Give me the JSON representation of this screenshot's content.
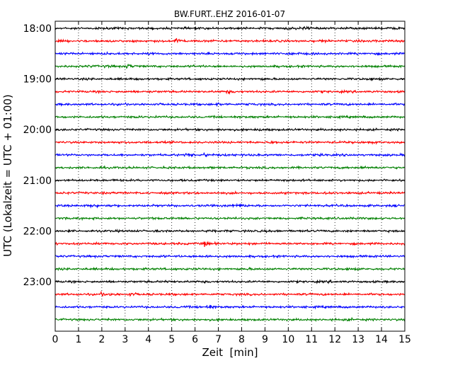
{
  "chart_data": {
    "type": "line",
    "title": "BW.FURT..EHZ 2016-01-07",
    "xlabel": "Zeit  [min]",
    "ylabel": "UTC (Lokalzeit = UTC + 01:00)",
    "xlim": [
      0,
      15
    ],
    "x_ticks": [
      0,
      1,
      2,
      3,
      4,
      5,
      6,
      7,
      8,
      9,
      10,
      11,
      12,
      13,
      14,
      15
    ],
    "y_tick_labels": [
      "18:00",
      "19:00",
      "20:00",
      "21:00",
      "22:00",
      "23:00"
    ],
    "grid": "vertical dotted",
    "trace_interval_minutes": 15,
    "trace_color_cycle": [
      "#000000",
      "#ff0000",
      "#0000ff",
      "#008000"
    ],
    "series": [
      {
        "start": "18:00",
        "events": [
          {
            "x": 10.0,
            "amp": 1.8
          },
          {
            "x": 10.7,
            "amp": 2.6
          },
          {
            "x": 14.5,
            "amp": 1.6
          }
        ]
      },
      {
        "start": "18:15",
        "events": [
          {
            "x": 5.2,
            "amp": 3.2
          },
          {
            "x": 6.8,
            "amp": 1.3
          },
          {
            "x": 11.5,
            "amp": 1.3
          }
        ]
      },
      {
        "start": "18:30",
        "events": [
          {
            "x": 2.0,
            "amp": 1.6
          },
          {
            "x": 4.2,
            "amp": 1.3
          },
          {
            "x": 10.1,
            "amp": 2.4
          },
          {
            "x": 13.4,
            "amp": 1.4
          }
        ]
      },
      {
        "start": "18:45",
        "events": [
          {
            "x": 1.5,
            "amp": 1.5
          },
          {
            "x": 2.2,
            "amp": 1.6
          },
          {
            "x": 3.1,
            "amp": 2.6
          },
          {
            "x": 5.9,
            "amp": 1.3
          },
          {
            "x": 9.5,
            "amp": 1.2
          }
        ]
      },
      {
        "start": "19:00",
        "events": [
          {
            "x": 3.5,
            "amp": 1.2
          },
          {
            "x": 8.8,
            "amp": 1.5
          },
          {
            "x": 13.5,
            "amp": 1.6
          }
        ]
      },
      {
        "start": "19:15",
        "events": [
          {
            "x": 7.4,
            "amp": 2.2
          },
          {
            "x": 11.4,
            "amp": 1.3
          }
        ]
      },
      {
        "start": "19:30",
        "events": [
          {
            "x": 2.8,
            "amp": 1.3
          },
          {
            "x": 7.0,
            "amp": 1.8
          },
          {
            "x": 8.3,
            "amp": 1.3
          },
          {
            "x": 12.2,
            "amp": 1.2
          }
        ]
      },
      {
        "start": "19:45",
        "events": [
          {
            "x": 3.5,
            "amp": 1.4
          },
          {
            "x": 4.3,
            "amp": 1.3
          },
          {
            "x": 8.5,
            "amp": 1.2
          }
        ]
      },
      {
        "start": "20:00",
        "events": [
          {
            "x": 7.0,
            "amp": 1.3
          },
          {
            "x": 8.8,
            "amp": 1.7
          },
          {
            "x": 12.3,
            "amp": 1.3
          }
        ]
      },
      {
        "start": "20:15",
        "events": [
          {
            "x": 3.2,
            "amp": 1.4
          },
          {
            "x": 9.3,
            "amp": 2.0
          },
          {
            "x": 13.5,
            "amp": 1.3
          }
        ]
      },
      {
        "start": "20:30",
        "events": [
          {
            "x": 5.6,
            "amp": 2.0
          },
          {
            "x": 6.4,
            "amp": 2.2
          },
          {
            "x": 7.5,
            "amp": 1.2
          },
          {
            "x": 11.1,
            "amp": 1.2
          }
        ]
      },
      {
        "start": "20:45",
        "events": [
          {
            "x": 8.2,
            "amp": 1.2
          },
          {
            "x": 13.2,
            "amp": 1.4
          }
        ]
      },
      {
        "start": "21:00",
        "events": [
          {
            "x": 2.3,
            "amp": 1.2
          },
          {
            "x": 9.8,
            "amp": 1.5
          },
          {
            "x": 14.0,
            "amp": 1.3
          }
        ]
      },
      {
        "start": "21:15",
        "events": [
          {
            "x": 11.6,
            "amp": 2.2
          },
          {
            "x": 12.8,
            "amp": 1.3
          }
        ]
      },
      {
        "start": "21:30",
        "events": [
          {
            "x": 1.5,
            "amp": 2.3
          },
          {
            "x": 2.3,
            "amp": 1.8
          },
          {
            "x": 7.4,
            "amp": 1.6
          },
          {
            "x": 7.9,
            "amp": 2.3
          }
        ]
      },
      {
        "start": "21:45",
        "events": [
          {
            "x": 3.9,
            "amp": 1.2
          },
          {
            "x": 7.3,
            "amp": 1.2
          },
          {
            "x": 12.5,
            "amp": 1.2
          }
        ]
      },
      {
        "start": "22:00",
        "events": [
          {
            "x": 6.5,
            "amp": 1.6
          },
          {
            "x": 9.0,
            "amp": 1.3
          },
          {
            "x": 10.5,
            "amp": 1.2
          }
        ]
      },
      {
        "start": "22:15",
        "events": [
          {
            "x": 6.4,
            "amp": 3.2
          },
          {
            "x": 7.0,
            "amp": 1.4
          },
          {
            "x": 8.4,
            "amp": 1.3
          }
        ]
      },
      {
        "start": "22:30",
        "events": [
          {
            "x": 4.5,
            "amp": 1.4
          },
          {
            "x": 6.4,
            "amp": 2.2
          },
          {
            "x": 6.9,
            "amp": 1.3
          }
        ]
      },
      {
        "start": "22:45",
        "events": [
          {
            "x": 8.3,
            "amp": 1.3
          },
          {
            "x": 12.6,
            "amp": 1.4
          }
        ]
      },
      {
        "start": "23:00",
        "events": [
          {
            "x": 4.8,
            "amp": 1.5
          },
          {
            "x": 6.4,
            "amp": 1.3
          },
          {
            "x": 11.8,
            "amp": 1.3
          }
        ]
      },
      {
        "start": "23:15",
        "events": [
          {
            "x": 2.0,
            "amp": 2.0
          },
          {
            "x": 2.4,
            "amp": 1.6
          },
          {
            "x": 3.2,
            "amp": 2.1
          }
        ]
      },
      {
        "start": "23:30",
        "events": [
          {
            "x": 5.3,
            "amp": 1.3
          },
          {
            "x": 6.2,
            "amp": 2.0
          },
          {
            "x": 6.6,
            "amp": 2.6
          }
        ]
      },
      {
        "start": "23:45",
        "events": [
          {
            "x": 2.3,
            "amp": 1.2
          },
          {
            "x": 12.6,
            "amp": 1.6
          }
        ]
      }
    ]
  }
}
